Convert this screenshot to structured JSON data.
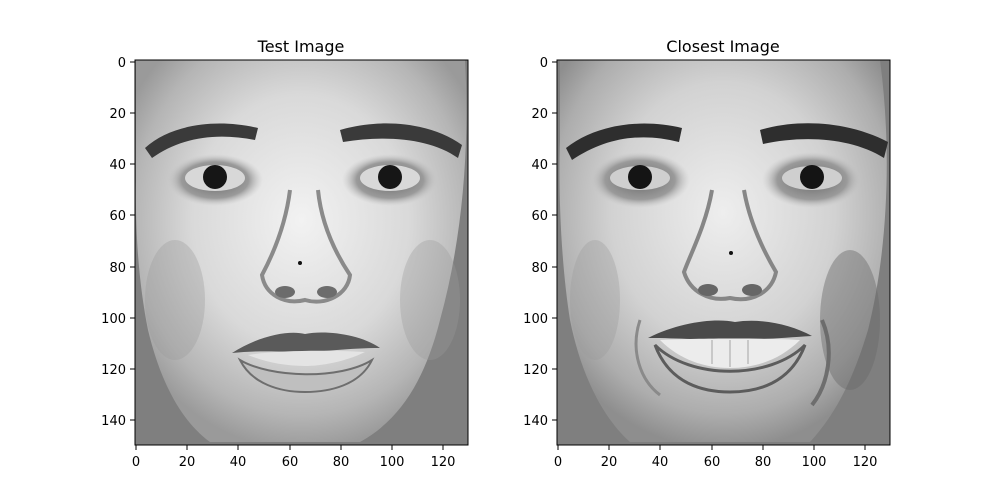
{
  "figure": {
    "panels": [
      {
        "title": "Test Image",
        "x_ticks": [
          "0",
          "20",
          "40",
          "60",
          "80",
          "100",
          "120"
        ],
        "y_ticks": [
          "0",
          "20",
          "40",
          "60",
          "80",
          "100",
          "120",
          "140"
        ],
        "image_subject": "grayscale face photograph (neutral expression)"
      },
      {
        "title": "Closest Image",
        "x_ticks": [
          "0",
          "20",
          "40",
          "60",
          "80",
          "100",
          "120"
        ],
        "y_ticks": [
          "0",
          "20",
          "40",
          "60",
          "80",
          "100",
          "120",
          "140"
        ],
        "image_subject": "grayscale face photograph (smiling)"
      }
    ],
    "colors": {
      "background_fill": "#7f7f7f",
      "axes": "#000000"
    }
  }
}
